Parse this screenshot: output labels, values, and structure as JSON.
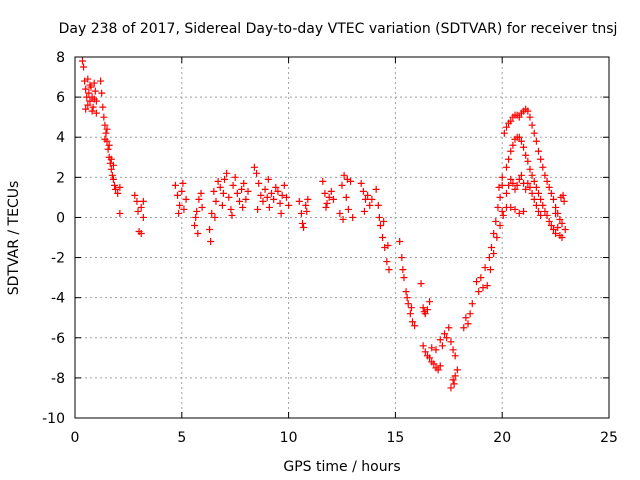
{
  "chart_data": {
    "type": "scatter",
    "title": "Day 238 of 2017, Sidereal Day-to-day VTEC variation (SDTVAR) for receiver tnsj",
    "xlabel": "GPS time / hours",
    "ylabel": "SDTVAR / TECUs",
    "xlim": [
      0,
      25
    ],
    "ylim": [
      -10,
      8
    ],
    "xticks": [
      "0",
      "5",
      "10",
      "15",
      "20",
      "25"
    ],
    "yticks": [
      "-10",
      "-8",
      "-6",
      "-4",
      "-2",
      "0",
      "2",
      "4",
      "6",
      "8"
    ],
    "grid": true,
    "marker": "+",
    "marker_color": "#ff0000",
    "series": [
      {
        "name": "SDTVAR",
        "points": [
          [
            0.35,
            7.8
          ],
          [
            0.4,
            7.5
          ],
          [
            0.45,
            6.8
          ],
          [
            0.5,
            6.4
          ],
          [
            0.55,
            6.0
          ],
          [
            0.6,
            5.6
          ],
          [
            0.65,
            6.2
          ],
          [
            0.7,
            5.8
          ],
          [
            0.75,
            6.5
          ],
          [
            0.8,
            6.0
          ],
          [
            0.85,
            5.5
          ],
          [
            0.9,
            5.9
          ],
          [
            0.95,
            6.3
          ],
          [
            1.0,
            5.2
          ],
          [
            0.5,
            5.4
          ],
          [
            0.6,
            6.9
          ],
          [
            0.7,
            6.6
          ],
          [
            0.8,
            5.3
          ],
          [
            0.9,
            6.7
          ],
          [
            1.0,
            5.8
          ],
          [
            1.2,
            6.8
          ],
          [
            1.25,
            6.2
          ],
          [
            1.3,
            5.5
          ],
          [
            1.35,
            5.0
          ],
          [
            1.4,
            4.6
          ],
          [
            1.45,
            4.2
          ],
          [
            1.5,
            3.8
          ],
          [
            1.55,
            3.4
          ],
          [
            1.6,
            3.0
          ],
          [
            1.65,
            2.7
          ],
          [
            1.7,
            2.4
          ],
          [
            1.75,
            2.1
          ],
          [
            1.8,
            1.9
          ],
          [
            1.85,
            1.6
          ],
          [
            1.9,
            1.4
          ],
          [
            1.4,
            3.9
          ],
          [
            1.5,
            4.4
          ],
          [
            1.6,
            3.6
          ],
          [
            1.7,
            2.9
          ],
          [
            1.8,
            2.6
          ],
          [
            2.0,
            1.2
          ],
          [
            2.1,
            1.5
          ],
          [
            2.1,
            0.2
          ],
          [
            2.8,
            1.1
          ],
          [
            2.9,
            0.8
          ],
          [
            2.95,
            0.3
          ],
          [
            3.0,
            -0.7
          ],
          [
            3.1,
            -0.8
          ],
          [
            3.1,
            0.5
          ],
          [
            3.2,
            0.0
          ],
          [
            3.2,
            0.8
          ],
          [
            4.7,
            1.6
          ],
          [
            4.8,
            1.1
          ],
          [
            4.9,
            0.6
          ],
          [
            5.0,
            1.3
          ],
          [
            5.1,
            0.4
          ],
          [
            5.2,
            0.9
          ],
          [
            4.85,
            0.2
          ],
          [
            5.05,
            1.7
          ],
          [
            5.6,
            -0.4
          ],
          [
            5.7,
            0.3
          ],
          [
            5.8,
            0.9
          ],
          [
            5.9,
            1.2
          ],
          [
            5.75,
            -0.8
          ],
          [
            5.95,
            0.5
          ],
          [
            5.65,
            0.0
          ],
          [
            6.3,
            -0.6
          ],
          [
            6.35,
            -1.2
          ],
          [
            6.4,
            0.2
          ],
          [
            6.5,
            1.3
          ],
          [
            6.6,
            0.8
          ],
          [
            6.7,
            1.8
          ],
          [
            6.8,
            1.5
          ],
          [
            6.9,
            0.6
          ],
          [
            7.0,
            1.9
          ],
          [
            7.1,
            2.2
          ],
          [
            7.2,
            1.0
          ],
          [
            7.3,
            0.4
          ],
          [
            7.4,
            1.6
          ],
          [
            7.5,
            2.0
          ],
          [
            7.6,
            1.2
          ],
          [
            7.7,
            0.8
          ],
          [
            7.8,
            1.4
          ],
          [
            7.9,
            1.7
          ],
          [
            8.0,
            0.9
          ],
          [
            8.1,
            1.3
          ],
          [
            6.55,
            0.0
          ],
          [
            6.95,
            1.2
          ],
          [
            7.35,
            0.1
          ],
          [
            7.85,
            0.5
          ],
          [
            8.4,
            2.5
          ],
          [
            8.5,
            2.2
          ],
          [
            8.6,
            1.7
          ],
          [
            8.7,
            1.1
          ],
          [
            8.8,
            0.8
          ],
          [
            8.9,
            1.4
          ],
          [
            9.0,
            1.0
          ],
          [
            9.1,
            0.5
          ],
          [
            9.2,
            1.2
          ],
          [
            9.3,
            0.9
          ],
          [
            9.4,
            1.5
          ],
          [
            9.5,
            1.3
          ],
          [
            9.6,
            0.7
          ],
          [
            9.7,
            1.1
          ],
          [
            9.8,
            1.6
          ],
          [
            9.9,
            1.0
          ],
          [
            10.0,
            0.6
          ],
          [
            8.55,
            0.4
          ],
          [
            9.05,
            1.9
          ],
          [
            9.65,
            0.2
          ],
          [
            10.5,
            0.8
          ],
          [
            10.6,
            0.2
          ],
          [
            10.7,
            -0.5
          ],
          [
            10.8,
            0.6
          ],
          [
            10.9,
            0.9
          ],
          [
            10.65,
            -0.3
          ],
          [
            10.85,
            0.3
          ],
          [
            11.6,
            1.8
          ],
          [
            11.7,
            1.2
          ],
          [
            11.8,
            0.7
          ],
          [
            11.9,
            1.0
          ],
          [
            12.0,
            1.3
          ],
          [
            12.1,
            0.9
          ],
          [
            11.75,
            0.5
          ],
          [
            12.4,
            0.2
          ],
          [
            12.5,
            1.6
          ],
          [
            12.6,
            2.1
          ],
          [
            12.7,
            1.0
          ],
          [
            12.8,
            0.4
          ],
          [
            12.9,
            1.8
          ],
          [
            13.0,
            0.0
          ],
          [
            12.55,
            -0.1
          ],
          [
            12.75,
            1.9
          ],
          [
            13.4,
            1.7
          ],
          [
            13.5,
            1.3
          ],
          [
            13.6,
            0.9
          ],
          [
            13.7,
            1.1
          ],
          [
            13.8,
            0.6
          ],
          [
            13.9,
            0.9
          ],
          [
            13.55,
            0.3
          ],
          [
            14.1,
            1.4
          ],
          [
            14.2,
            0.6
          ],
          [
            14.3,
            -0.4
          ],
          [
            14.4,
            -1.0
          ],
          [
            14.5,
            -1.5
          ],
          [
            14.6,
            -2.2
          ],
          [
            14.7,
            -2.6
          ],
          [
            14.25,
            0.0
          ],
          [
            14.45,
            -0.2
          ],
          [
            14.65,
            -1.4
          ],
          [
            15.2,
            -1.2
          ],
          [
            15.3,
            -2.0
          ],
          [
            15.4,
            -3.0
          ],
          [
            15.5,
            -3.7
          ],
          [
            15.6,
            -4.3
          ],
          [
            15.7,
            -4.8
          ],
          [
            15.8,
            -5.2
          ],
          [
            15.9,
            -5.4
          ],
          [
            15.35,
            -2.6
          ],
          [
            15.55,
            -4.0
          ],
          [
            15.75,
            -4.5
          ],
          [
            16.2,
            -3.3
          ],
          [
            16.3,
            -4.5
          ],
          [
            16.4,
            -4.8
          ],
          [
            16.5,
            -4.6
          ],
          [
            16.6,
            -4.2
          ],
          [
            16.35,
            -4.7
          ],
          [
            16.3,
            -6.4
          ],
          [
            16.4,
            -6.7
          ],
          [
            16.5,
            -6.9
          ],
          [
            16.6,
            -7.0
          ],
          [
            16.7,
            -7.2
          ],
          [
            16.8,
            -7.3
          ],
          [
            16.9,
            -7.5
          ],
          [
            17.0,
            -7.6
          ],
          [
            17.1,
            -7.4
          ],
          [
            17.2,
            -6.4
          ],
          [
            16.7,
            -6.5
          ],
          [
            16.9,
            -6.6
          ],
          [
            17.1,
            -6.1
          ],
          [
            17.3,
            -5.8
          ],
          [
            17.4,
            -6.0
          ],
          [
            17.5,
            -5.5
          ],
          [
            17.6,
            -6.2
          ],
          [
            17.7,
            -6.6
          ],
          [
            17.8,
            -6.9
          ],
          [
            17.6,
            -8.5
          ],
          [
            17.7,
            -8.1
          ],
          [
            17.8,
            -7.9
          ],
          [
            17.9,
            -7.6
          ],
          [
            17.75,
            -8.3
          ],
          [
            18.2,
            -5.5
          ],
          [
            18.3,
            -5.0
          ],
          [
            18.4,
            -5.3
          ],
          [
            18.5,
            -4.8
          ],
          [
            18.6,
            -4.3
          ],
          [
            18.8,
            -3.2
          ],
          [
            18.9,
            -3.7
          ],
          [
            19.0,
            -3.0
          ],
          [
            19.1,
            -3.5
          ],
          [
            19.2,
            -2.5
          ],
          [
            19.3,
            -3.4
          ],
          [
            19.4,
            -2.0
          ],
          [
            19.5,
            -1.5
          ],
          [
            19.6,
            -0.8
          ],
          [
            19.7,
            -0.2
          ],
          [
            19.8,
            0.5
          ],
          [
            19.9,
            1.0
          ],
          [
            20.0,
            1.6
          ],
          [
            19.45,
            -2.6
          ],
          [
            19.6,
            -1.8
          ],
          [
            19.75,
            -1.0
          ],
          [
            19.9,
            -0.4
          ],
          [
            20.05,
            0.1
          ],
          [
            19.85,
            1.5
          ],
          [
            20.0,
            2.0
          ],
          [
            20.1,
            4.2
          ],
          [
            20.2,
            4.5
          ],
          [
            20.3,
            4.7
          ],
          [
            20.4,
            4.8
          ],
          [
            20.5,
            5.0
          ],
          [
            20.6,
            5.1
          ],
          [
            20.7,
            5.1
          ],
          [
            20.8,
            5.0
          ],
          [
            20.9,
            5.2
          ],
          [
            21.0,
            5.3
          ],
          [
            21.1,
            5.4
          ],
          [
            21.2,
            5.3
          ],
          [
            21.3,
            5.0
          ],
          [
            21.4,
            4.6
          ],
          [
            21.5,
            4.2
          ],
          [
            21.6,
            3.8
          ],
          [
            21.7,
            3.3
          ],
          [
            21.8,
            2.9
          ],
          [
            21.9,
            2.5
          ],
          [
            22.0,
            2.1
          ],
          [
            22.1,
            1.8
          ],
          [
            22.2,
            1.5
          ],
          [
            22.3,
            1.2
          ],
          [
            22.4,
            0.9
          ],
          [
            22.5,
            0.5
          ],
          [
            22.6,
            0.2
          ],
          [
            22.7,
            -0.1
          ],
          [
            22.8,
            -0.3
          ],
          [
            20.2,
            2.5
          ],
          [
            20.3,
            2.9
          ],
          [
            20.4,
            3.3
          ],
          [
            20.5,
            3.6
          ],
          [
            20.6,
            3.9
          ],
          [
            20.7,
            4.0
          ],
          [
            20.8,
            4.0
          ],
          [
            20.9,
            3.8
          ],
          [
            21.0,
            3.5
          ],
          [
            21.1,
            3.1
          ],
          [
            21.2,
            2.8
          ],
          [
            21.3,
            2.4
          ],
          [
            21.4,
            2.1
          ],
          [
            21.5,
            1.8
          ],
          [
            21.6,
            1.5
          ],
          [
            21.7,
            1.2
          ],
          [
            21.8,
            0.9
          ],
          [
            21.9,
            0.6
          ],
          [
            22.0,
            0.3
          ],
          [
            22.1,
            0.1
          ],
          [
            22.2,
            -0.2
          ],
          [
            22.3,
            -0.4
          ],
          [
            22.4,
            -0.6
          ],
          [
            22.5,
            -0.8
          ],
          [
            20.2,
            1.2
          ],
          [
            20.3,
            1.6
          ],
          [
            20.4,
            1.9
          ],
          [
            20.5,
            1.7
          ],
          [
            20.6,
            1.4
          ],
          [
            20.7,
            1.6
          ],
          [
            20.8,
            1.9
          ],
          [
            20.9,
            2.1
          ],
          [
            21.0,
            1.7
          ],
          [
            21.1,
            1.4
          ],
          [
            21.2,
            1.7
          ],
          [
            21.3,
            1.5
          ],
          [
            21.4,
            1.2
          ],
          [
            21.5,
            0.9
          ],
          [
            21.6,
            0.6
          ],
          [
            21.7,
            0.3
          ],
          [
            21.8,
            0.1
          ],
          [
            20.0,
            0.3
          ],
          [
            20.2,
            0.5
          ],
          [
            20.4,
            0.5
          ],
          [
            20.6,
            0.4
          ],
          [
            20.8,
            0.2
          ],
          [
            21.0,
            0.3
          ],
          [
            22.5,
            0.2
          ],
          [
            22.6,
            -0.5
          ],
          [
            22.7,
            -0.9
          ],
          [
            22.8,
            -1.0
          ],
          [
            22.85,
            1.1
          ],
          [
            22.9,
            0.8
          ],
          [
            22.95,
            -0.6
          ],
          [
            22.75,
            1.0
          ]
        ]
      }
    ]
  }
}
